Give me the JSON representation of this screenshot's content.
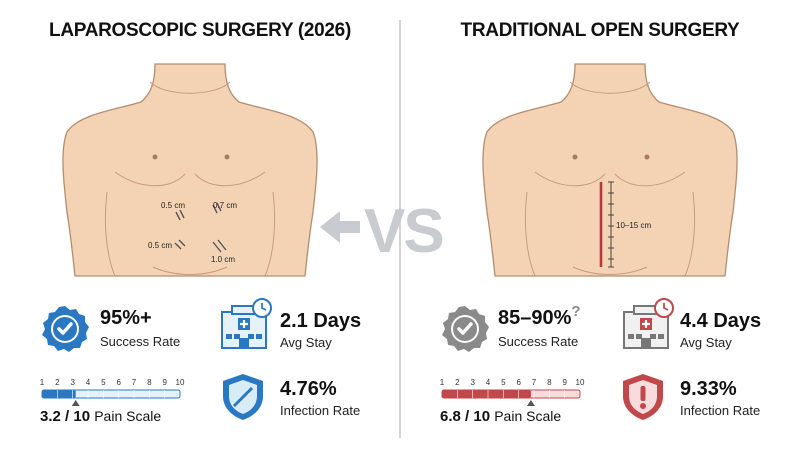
{
  "left": {
    "title": "LAPAROSCOPIC SURGERY (2026)",
    "incisions": [
      "0.5 cm",
      "0.7 cm",
      "0.5 cm",
      "1.0 cm"
    ],
    "success": {
      "value": "95%+",
      "label": "Success Rate"
    },
    "stay": {
      "value": "2.1 Days",
      "label": "Avg Stay"
    },
    "pain": {
      "value_text": "3.2 / 10",
      "label": "Pain Scale",
      "level": 3.2
    },
    "infection": {
      "value": "4.76%",
      "label": "Infection Rate"
    },
    "accent": "#2a78c2"
  },
  "right": {
    "title": "TRADITIONAL OPEN SURGERY",
    "incision": "10–15 cm",
    "success": {
      "value": "85–90%",
      "mark": "?",
      "label": "Success Rate"
    },
    "stay": {
      "value": "4.4 Days",
      "label": "Avg Stay"
    },
    "pain": {
      "value_text": "6.8 / 10",
      "label": "Pain Scale",
      "level": 6.8
    },
    "infection": {
      "value": "9.33%",
      "label": "Infection Rate"
    },
    "accent": "#c0474a"
  },
  "vs_text": "VS",
  "scale_ticks": [
    "1",
    "2",
    "3",
    "4",
    "5",
    "6",
    "7",
    "8",
    "9",
    "10"
  ],
  "colors": {
    "skin": "#f4d3b5",
    "skin_line": "#b58c70",
    "blue": "#2a78c2",
    "red": "#c0474a",
    "gray": "#8a8a8a"
  }
}
